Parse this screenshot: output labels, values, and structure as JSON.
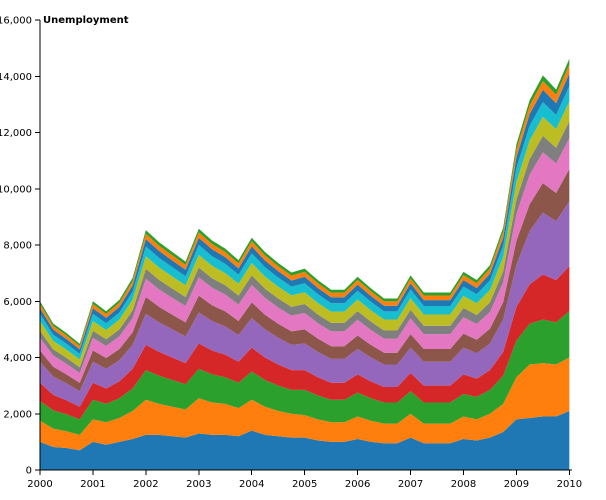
{
  "chart_data": {
    "type": "area",
    "stacked": true,
    "ylabel": "Unemployment",
    "x": [
      2000,
      2000.25,
      2000.5,
      2000.75,
      2001,
      2001.25,
      2001.5,
      2001.75,
      2002,
      2002.25,
      2002.5,
      2002.75,
      2003,
      2003.25,
      2003.5,
      2003.75,
      2004,
      2004.25,
      2004.5,
      2004.75,
      2005,
      2005.25,
      2005.5,
      2005.75,
      2006,
      2006.25,
      2006.5,
      2006.75,
      2007,
      2007.25,
      2007.5,
      2007.75,
      2008,
      2008.25,
      2008.5,
      2008.75,
      2009,
      2009.25,
      2009.5,
      2009.75,
      2010
    ],
    "xlim": [
      2000,
      2010.05
    ],
    "ylim": [
      0,
      16000
    ],
    "x_ticks": [
      "2000",
      "2001",
      "2002",
      "2003",
      "2004",
      "2005",
      "2006",
      "2007",
      "2008",
      "2009",
      "2010"
    ],
    "x_tick_values": [
      2000,
      2001,
      2002,
      2003,
      2004,
      2005,
      2006,
      2007,
      2008,
      2009,
      2010
    ],
    "y_ticks": [
      "0",
      "2,000",
      "4,000",
      "6,000",
      "8,000",
      "10,000",
      "12,000",
      "14,000",
      "16,000"
    ],
    "y_tick_values": [
      0,
      2000,
      4000,
      6000,
      8000,
      10000,
      12000,
      14000,
      16000
    ],
    "grid": false,
    "series": [
      {
        "color": "#1f77b4",
        "values": [
          1000,
          820,
          780,
          700,
          1000,
          900,
          1000,
          1100,
          1250,
          1250,
          1200,
          1150,
          1300,
          1250,
          1250,
          1200,
          1400,
          1250,
          1200,
          1150,
          1150,
          1050,
          1000,
          1000,
          1100,
          1000,
          950,
          950,
          1150,
          950,
          950,
          950,
          1100,
          1050,
          1150,
          1350,
          1800,
          1850,
          1900,
          1900,
          2100
        ]
      },
      {
        "color": "#ff7f0e",
        "values": [
          750,
          650,
          600,
          550,
          800,
          800,
          850,
          1000,
          1250,
          1100,
          1050,
          1000,
          1250,
          1150,
          1100,
          1000,
          1100,
          1000,
          900,
          850,
          800,
          750,
          700,
          700,
          800,
          750,
          700,
          700,
          850,
          700,
          700,
          700,
          800,
          750,
          850,
          1000,
          1500,
          1900,
          1900,
          1850,
          1900
        ]
      },
      {
        "color": "#2ca02c",
        "values": [
          700,
          650,
          600,
          550,
          700,
          650,
          700,
          800,
          1050,
          1000,
          950,
          900,
          1050,
          1000,
          950,
          900,
          1000,
          950,
          900,
          850,
          900,
          850,
          800,
          800,
          850,
          800,
          750,
          750,
          800,
          750,
          750,
          750,
          800,
          800,
          850,
          1000,
          1300,
          1450,
          1550,
          1500,
          1650
        ]
      },
      {
        "color": "#d62728",
        "values": [
          650,
          550,
          500,
          450,
          600,
          550,
          600,
          700,
          900,
          850,
          800,
          750,
          900,
          850,
          800,
          750,
          850,
          800,
          750,
          700,
          700,
          650,
          600,
          600,
          650,
          600,
          550,
          550,
          650,
          600,
          600,
          600,
          700,
          650,
          700,
          850,
          1200,
          1400,
          1600,
          1500,
          1600
        ]
      },
      {
        "color": "#9467bd",
        "values": [
          750,
          650,
          600,
          550,
          750,
          700,
          750,
          850,
          1100,
          1050,
          1000,
          950,
          1100,
          1050,
          1000,
          950,
          1050,
          1000,
          950,
          900,
          950,
          900,
          850,
          850,
          900,
          850,
          800,
          800,
          900,
          850,
          850,
          850,
          950,
          900,
          950,
          1150,
          1500,
          1900,
          2200,
          2100,
          2300
        ]
      },
      {
        "color": "#8c564b",
        "values": [
          400,
          350,
          320,
          300,
          400,
          380,
          400,
          450,
          600,
          550,
          520,
          500,
          600,
          560,
          540,
          500,
          560,
          520,
          500,
          480,
          500,
          470,
          450,
          450,
          480,
          450,
          420,
          420,
          480,
          450,
          450,
          450,
          500,
          480,
          520,
          620,
          850,
          950,
          1050,
          1000,
          1150
        ]
      },
      {
        "color": "#e377c2",
        "values": [
          450,
          400,
          380,
          350,
          450,
          430,
          450,
          500,
          650,
          620,
          600,
          580,
          650,
          620,
          600,
          580,
          620,
          600,
          580,
          560,
          580,
          550,
          530,
          530,
          560,
          530,
          500,
          500,
          560,
          530,
          530,
          530,
          580,
          560,
          600,
          700,
          950,
          1050,
          1100,
          1050,
          1100
        ]
      },
      {
        "color": "#7f7f7f",
        "values": [
          250,
          220,
          210,
          200,
          250,
          240,
          250,
          280,
          350,
          340,
          330,
          320,
          350,
          340,
          330,
          320,
          340,
          330,
          320,
          310,
          320,
          310,
          300,
          300,
          310,
          300,
          290,
          290,
          310,
          300,
          300,
          300,
          330,
          320,
          340,
          400,
          520,
          560,
          580,
          560,
          600
        ]
      },
      {
        "color": "#bcbd22",
        "values": [
          350,
          300,
          290,
          280,
          350,
          330,
          350,
          380,
          450,
          440,
          430,
          420,
          450,
          440,
          430,
          420,
          440,
          430,
          420,
          410,
          420,
          410,
          400,
          400,
          410,
          400,
          390,
          390,
          410,
          400,
          400,
          400,
          430,
          420,
          440,
          500,
          620,
          660,
          680,
          660,
          700
        ]
      },
      {
        "color": "#17becf",
        "values": [
          250,
          220,
          210,
          200,
          250,
          240,
          250,
          280,
          350,
          340,
          330,
          320,
          350,
          340,
          330,
          320,
          340,
          330,
          320,
          310,
          320,
          310,
          300,
          300,
          310,
          300,
          290,
          290,
          310,
          300,
          300,
          300,
          330,
          320,
          340,
          400,
          500,
          520,
          520,
          500,
          550
        ]
      },
      {
        "color": "#1f77b4",
        "values": [
          200,
          180,
          170,
          160,
          200,
          190,
          200,
          220,
          260,
          250,
          240,
          230,
          260,
          250,
          240,
          230,
          250,
          240,
          230,
          220,
          230,
          220,
          210,
          210,
          220,
          210,
          200,
          200,
          220,
          210,
          210,
          210,
          230,
          220,
          240,
          290,
          380,
          420,
          440,
          420,
          450
        ]
      },
      {
        "color": "#ff7f0e",
        "values": [
          150,
          130,
          125,
          120,
          150,
          140,
          150,
          160,
          190,
          185,
          180,
          175,
          190,
          185,
          180,
          175,
          185,
          180,
          175,
          170,
          175,
          170,
          165,
          165,
          170,
          165,
          160,
          160,
          170,
          165,
          165,
          165,
          180,
          175,
          185,
          220,
          280,
          300,
          310,
          300,
          320
        ]
      },
      {
        "color": "#2ca02c",
        "values": [
          100,
          90,
          85,
          80,
          100,
          95,
          100,
          110,
          130,
          125,
          120,
          115,
          130,
          125,
          120,
          115,
          125,
          120,
          115,
          110,
          115,
          110,
          105,
          105,
          110,
          105,
          100,
          100,
          110,
          105,
          105,
          105,
          115,
          110,
          120,
          140,
          180,
          190,
          200,
          190,
          200
        ]
      }
    ]
  }
}
